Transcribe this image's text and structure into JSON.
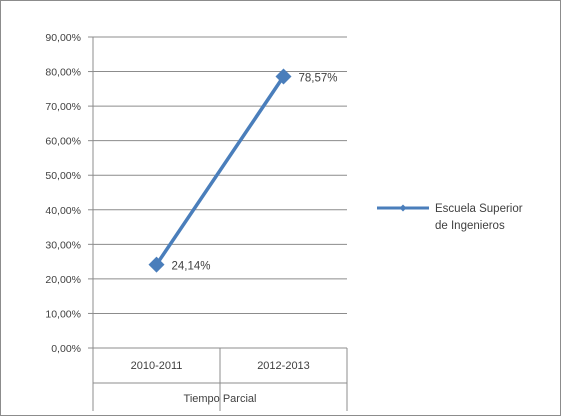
{
  "chart_data": {
    "type": "line",
    "categories": [
      "2010-2011",
      "2012-2013"
    ],
    "group_label": "Tiempo Parcial",
    "series": [
      {
        "name": "Escuela Superior de Ingenieros",
        "values": [
          24.14,
          78.57
        ],
        "data_labels": [
          "24,14%",
          "78,57%"
        ],
        "color": "#4a7ebb"
      }
    ],
    "ylim": [
      0,
      90
    ],
    "yticks": [
      0,
      10,
      20,
      30,
      40,
      50,
      60,
      70,
      80,
      90
    ],
    "ytick_labels": [
      "0,00%",
      "10,00%",
      "20,00%",
      "30,00%",
      "40,00%",
      "50,00%",
      "60,00%",
      "70,00%",
      "80,00%",
      "90,00%"
    ],
    "grid": true,
    "legend": {
      "position": "right",
      "lines": [
        "Escuela Superior",
        "de Ingenieros"
      ]
    },
    "colors": {
      "gridline": "#8c8c8c",
      "axis": "#8c8c8c",
      "text": "#404040"
    }
  }
}
